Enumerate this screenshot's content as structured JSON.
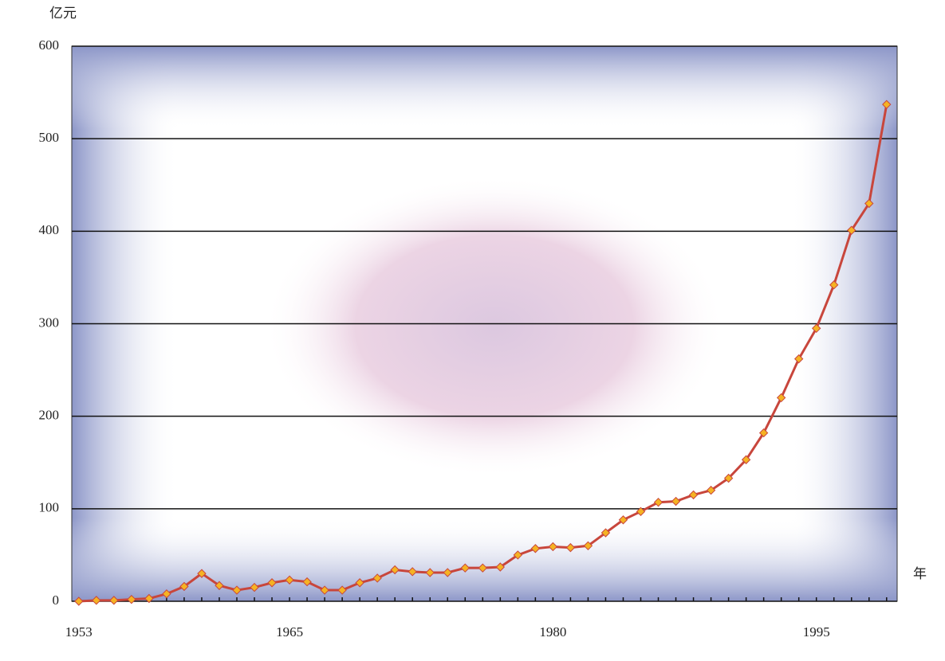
{
  "chart_data": {
    "type": "line",
    "y_label": "亿元",
    "x_label": "年",
    "x": [
      1953,
      1954,
      1955,
      1956,
      1957,
      1958,
      1959,
      1960,
      1961,
      1962,
      1963,
      1964,
      1965,
      1966,
      1967,
      1968,
      1969,
      1970,
      1971,
      1972,
      1973,
      1974,
      1975,
      1976,
      1977,
      1978,
      1979,
      1980,
      1981,
      1982,
      1983,
      1984,
      1985,
      1986,
      1987,
      1988,
      1989,
      1990,
      1991,
      1992,
      1993,
      1994,
      1995,
      1996,
      1997,
      1998,
      1999
    ],
    "values": [
      0,
      1,
      1,
      2,
      3,
      8,
      16,
      30,
      17,
      12,
      15,
      20,
      23,
      21,
      12,
      12,
      20,
      25,
      34,
      32,
      31,
      31,
      36,
      36,
      37,
      50,
      57,
      59,
      58,
      60,
      74,
      88,
      97,
      107,
      108,
      115,
      120,
      133,
      153,
      182,
      220,
      262,
      295,
      342,
      401,
      430,
      537
    ],
    "color": "#c8463c",
    "marker_color": "#f5b323",
    "xlim": [
      1952.6,
      1999.6
    ],
    "xticks": [
      1953,
      1965,
      1980,
      1995
    ],
    "ylim": [
      0,
      600
    ],
    "yticks": [
      0,
      100,
      200,
      300,
      400,
      500,
      600
    ],
    "grid": true
  }
}
